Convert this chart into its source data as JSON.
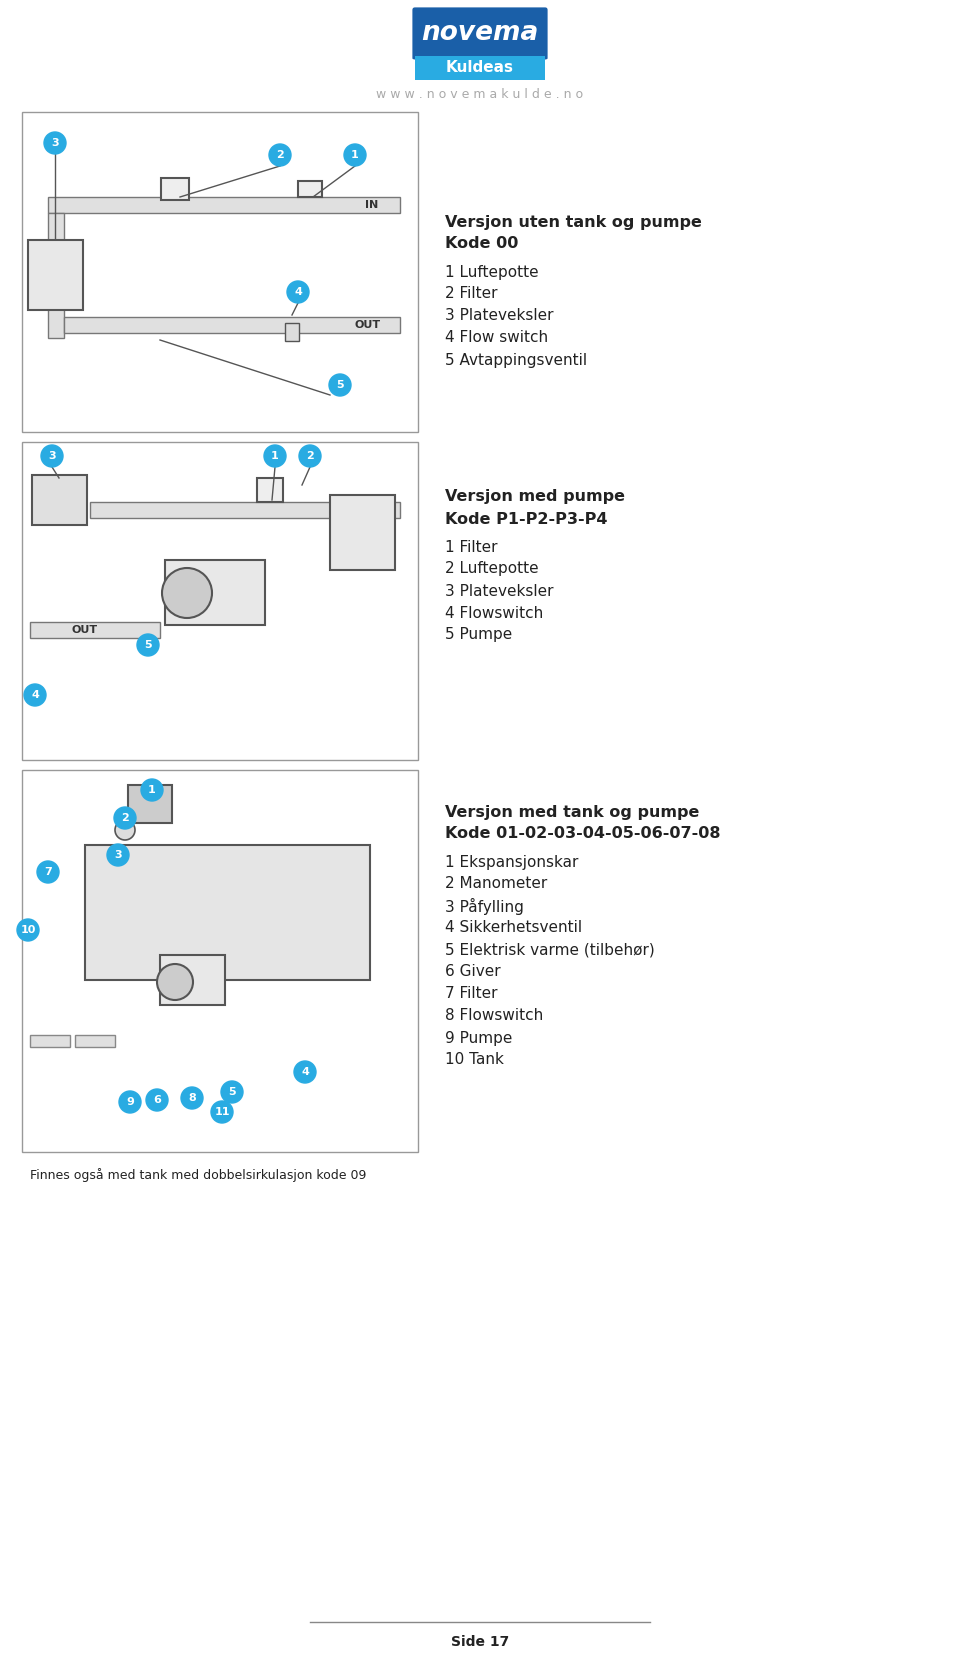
{
  "page_bg": "#ffffff",
  "logo_text_top": "novema",
  "logo_text_bottom": "Kuldeas",
  "logo_bg_top": "#1a5fa8",
  "logo_bg_bottom": "#29abe2",
  "website": "w w w . n o v e m a k u l d e . n o",
  "section1": {
    "title_bold": "Versjon uten tank og pumpe",
    "title_bold2": "Kode 00",
    "items": [
      "1 Luftepotte",
      "2 Filter",
      "3 Plateveksler",
      "4 Flow switch",
      "5 Avtappingsventil"
    ]
  },
  "section2": {
    "title_bold": "Versjon med pumpe",
    "title_bold2": "Kode P1-P2-P3-P4",
    "items": [
      "1 Filter",
      "2 Luftepotte",
      "3 Plateveksler",
      "4 Flowswitch",
      "5 Pumpe"
    ]
  },
  "section3": {
    "title_bold": "Versjon med tank og pumpe",
    "title_bold2": "Kode 01-02-03-04-05-06-07-08",
    "items": [
      "1 Ekspansjonskar",
      "2 Manometer",
      "3 Påfylling",
      "4 Sikkerhetsventil",
      "5 Elektrisk varme (tilbehør)",
      "6 Giver",
      "7 Filter",
      "8 Flowswitch",
      "9 Pumpe",
      "10 Tank"
    ]
  },
  "footer_note": "Finnes også med tank med dobbelsirkulasjon kode 09",
  "page_number": "Side 17",
  "border_color": "#888888",
  "text_color": "#222222",
  "circle_color": "#29abe2",
  "circle_text_color": "#ffffff"
}
